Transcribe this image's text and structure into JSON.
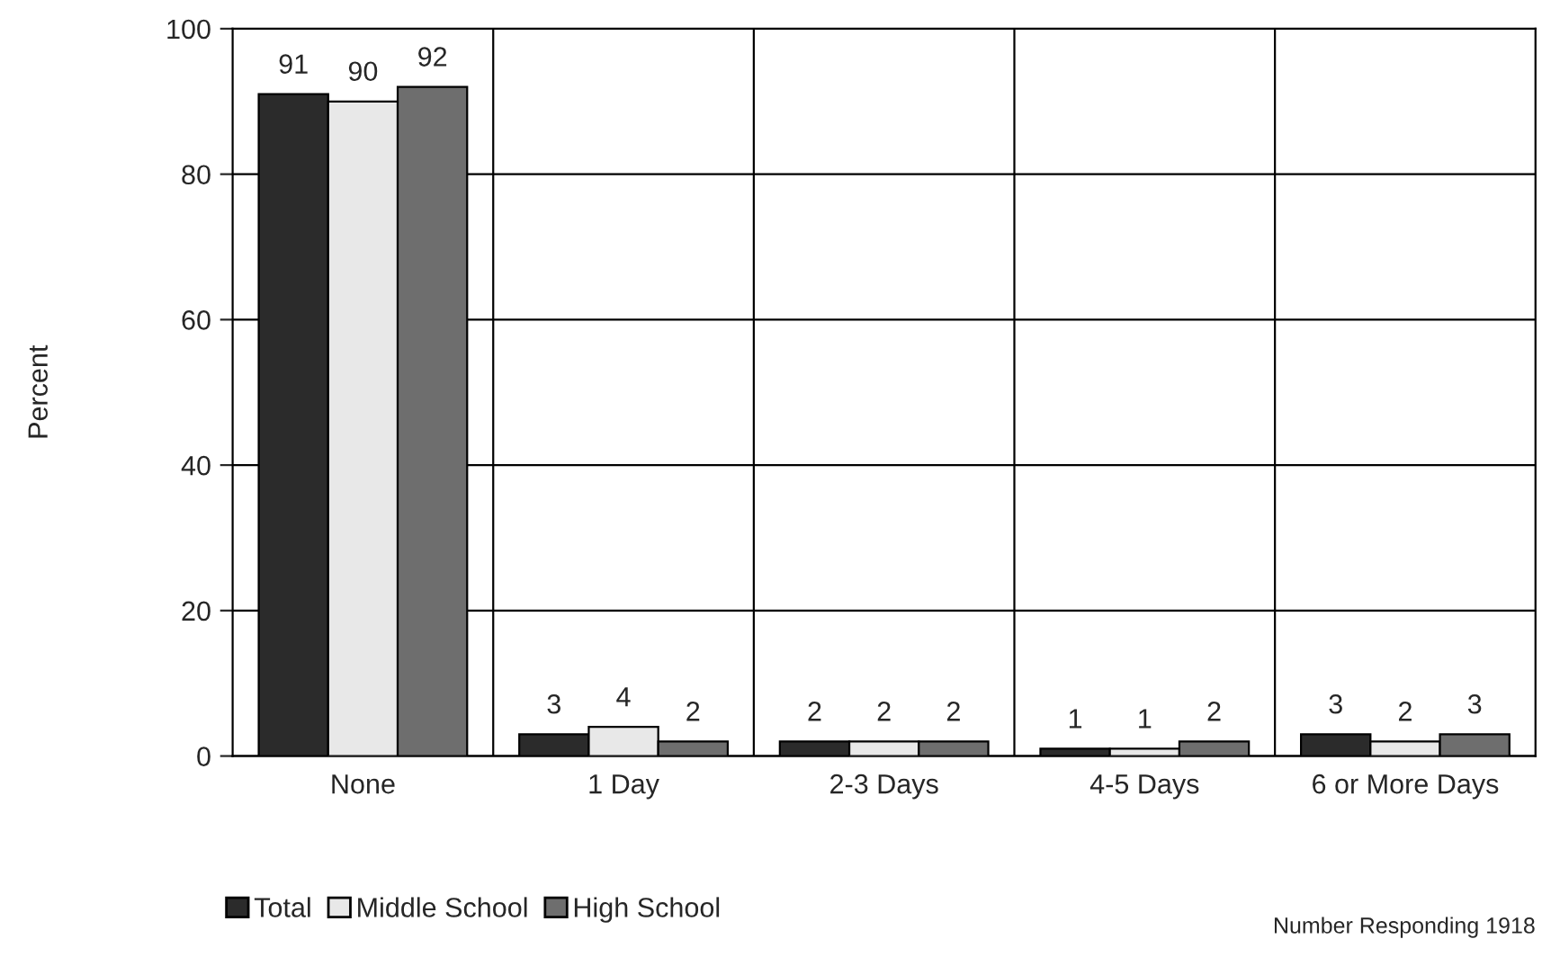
{
  "chart_data": {
    "type": "bar",
    "ylabel": "Percent",
    "categories": [
      "None",
      "1 Day",
      "2-3 Days",
      "4-5 Days",
      "6 or More Days"
    ],
    "series": [
      {
        "name": "Total",
        "color": "#2b2b2b",
        "values": [
          91,
          3,
          2,
          1,
          3
        ]
      },
      {
        "name": "Middle School",
        "color": "#e8e8e8",
        "values": [
          90,
          4,
          2,
          1,
          2
        ]
      },
      {
        "name": "High School",
        "color": "#6e6e6e",
        "values": [
          92,
          2,
          2,
          2,
          3
        ]
      }
    ],
    "ylim": [
      0,
      100
    ],
    "yticks": [
      0,
      20,
      40,
      60,
      80,
      100
    ],
    "grid": true,
    "legend": "bottom left",
    "data_labels": true,
    "annotations": [
      "Number Responding 1918"
    ]
  }
}
